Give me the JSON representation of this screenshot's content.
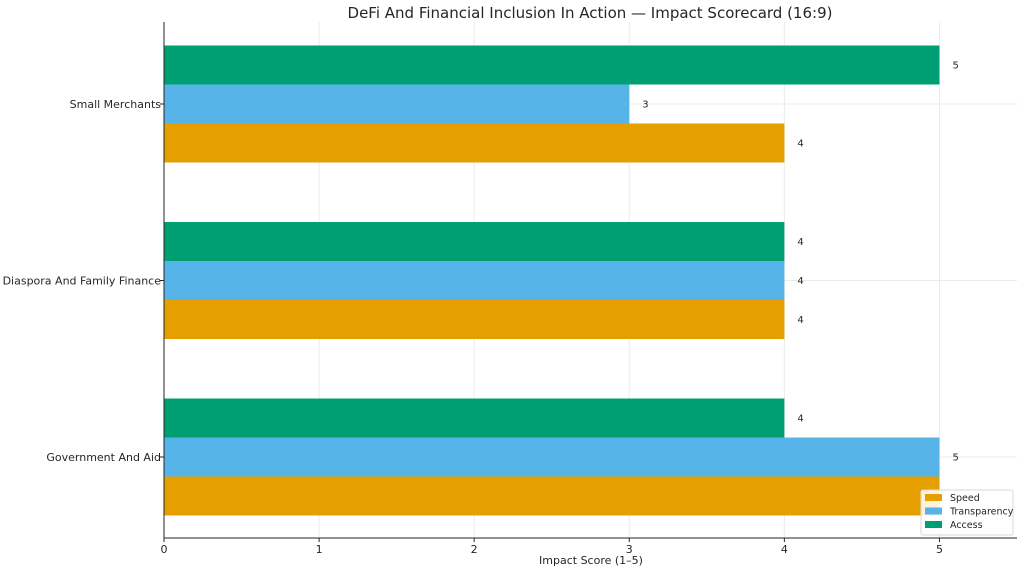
{
  "chart_data": {
    "type": "bar",
    "orientation": "horizontal",
    "title": "DeFi And Financial Inclusion In Action — Impact Scorecard (16:9)",
    "xlabel": "Impact Score (1–5)",
    "ylabel": "",
    "xlim": [
      0,
      5.5
    ],
    "xticks": [
      "0",
      "1",
      "2",
      "3",
      "4",
      "5"
    ],
    "grid": true,
    "legend_position": "bottom-right",
    "categories": [
      "Small Merchants",
      "Diaspora And Family Finance",
      "Government And Aid"
    ],
    "series": [
      {
        "name": "Speed",
        "color": "#E69F00",
        "values": [
          4,
          4,
          5
        ]
      },
      {
        "name": "Transparency",
        "color": "#56B4E9",
        "values": [
          3,
          4,
          5
        ]
      },
      {
        "name": "Access",
        "color": "#009E73",
        "values": [
          5,
          4,
          4
        ]
      }
    ],
    "data_labels": {
      "Small Merchants": {
        "Access": "5",
        "Transparency": "3",
        "Speed": "4"
      },
      "Diaspora And Family Finance": {
        "Access": "4",
        "Transparency": "4",
        "Speed": "4"
      },
      "Government And Aid": {
        "Access": "4",
        "Transparency": "5",
        "Speed": ""
      }
    }
  }
}
